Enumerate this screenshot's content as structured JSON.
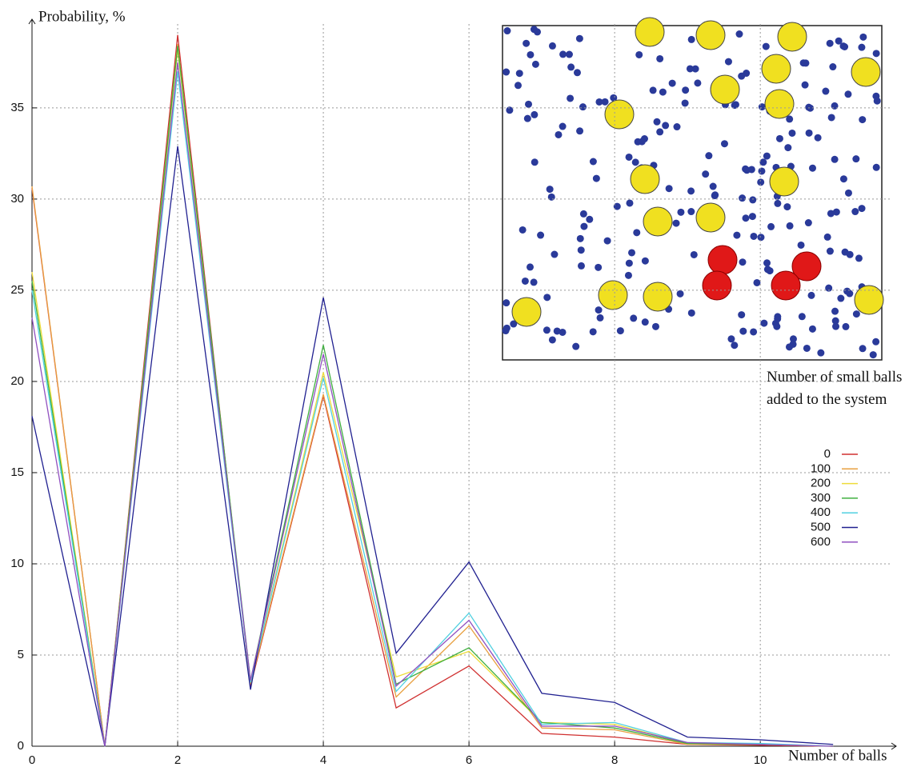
{
  "chart_data": {
    "type": "line",
    "y_label": "Probability, %",
    "x_label": "Number of balls",
    "legend_title": "Number of small balls added to the system",
    "x": [
      0,
      1,
      2,
      3,
      4,
      5,
      6,
      7,
      8,
      9,
      10,
      11
    ],
    "xlim": [
      0,
      11.8
    ],
    "ylim": [
      0,
      39.6
    ],
    "xticks": [
      0,
      2,
      4,
      6,
      8,
      10
    ],
    "yticks": [
      0,
      5,
      10,
      15,
      20,
      25,
      30,
      35
    ],
    "grid": true,
    "legend": "right",
    "series": [
      {
        "name": "0",
        "color": "#d03030",
        "values": [
          30.6,
          0,
          39,
          3.3,
          19.2,
          2.1,
          4.4,
          0.7,
          0.5,
          0.1,
          0.05,
          0
        ]
      },
      {
        "name": "100",
        "color": "#e8a040",
        "values": [
          30.7,
          0,
          38.5,
          3.4,
          19.3,
          2.7,
          6.6,
          1.0,
          0.9,
          0.1,
          0.1,
          0
        ]
      },
      {
        "name": "200",
        "color": "#eedc3a",
        "values": [
          26,
          0,
          38.2,
          3.5,
          20.5,
          3.8,
          5.2,
          1.3,
          1.2,
          0.15,
          0.1,
          0
        ]
      },
      {
        "name": "300",
        "color": "#40b040",
        "values": [
          25.5,
          0,
          38.4,
          3.6,
          22,
          3.4,
          5.4,
          1.3,
          1.0,
          0.15,
          0.1,
          0
        ]
      },
      {
        "name": "400",
        "color": "#50d0e0",
        "values": [
          25,
          0,
          37,
          3.5,
          20.2,
          3.0,
          7.3,
          1.2,
          1.3,
          0.2,
          0.15,
          0
        ]
      },
      {
        "name": "500",
        "color": "#202090",
        "values": [
          18.1,
          0,
          32.9,
          3.1,
          24.6,
          5.1,
          10.1,
          2.9,
          2.4,
          0.5,
          0.35,
          0.1
        ]
      },
      {
        "name": "600",
        "color": "#9050c0",
        "values": [
          23.5,
          0,
          37.5,
          3.6,
          21.5,
          3.3,
          6.9,
          1.1,
          1.1,
          0.2,
          0.1,
          0
        ]
      }
    ]
  }
}
